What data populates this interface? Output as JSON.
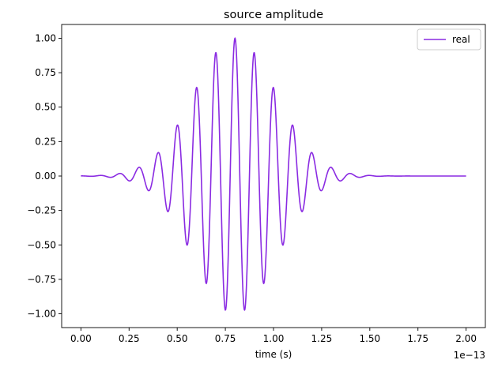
{
  "chart_data": {
    "type": "line",
    "title": "source amplitude",
    "xlabel": "time (s)",
    "ylabel": "",
    "x_offset_label": "1e−13",
    "xlim": [
      -0.1,
      2.1
    ],
    "ylim": [
      -1.1,
      1.1
    ],
    "x_ticks": [
      0.0,
      0.25,
      0.5,
      0.75,
      1.0,
      1.25,
      1.5,
      1.75,
      2.0
    ],
    "x_tick_labels": [
      "0.00",
      "0.25",
      "0.50",
      "0.75",
      "1.00",
      "1.25",
      "1.50",
      "1.75",
      "2.00"
    ],
    "y_ticks": [
      -1.0,
      -0.75,
      -0.5,
      -0.25,
      0.0,
      0.25,
      0.5,
      0.75,
      1.0
    ],
    "y_tick_labels": [
      "−1.00",
      "−0.75",
      "−0.50",
      "−0.25",
      "0.00",
      "0.25",
      "0.50",
      "0.75",
      "1.00"
    ],
    "grid": false,
    "legend_position": "top-right",
    "series": [
      {
        "name": "real",
        "color": "#8a2be2",
        "function": "cos(2*pi*f*(t - t0)) * exp(-((t - t0)/tau)^2)",
        "f": 10.0,
        "t0": 0.8,
        "tau": 0.3,
        "x_range": [
          0.0,
          2.0
        ]
      }
    ]
  }
}
